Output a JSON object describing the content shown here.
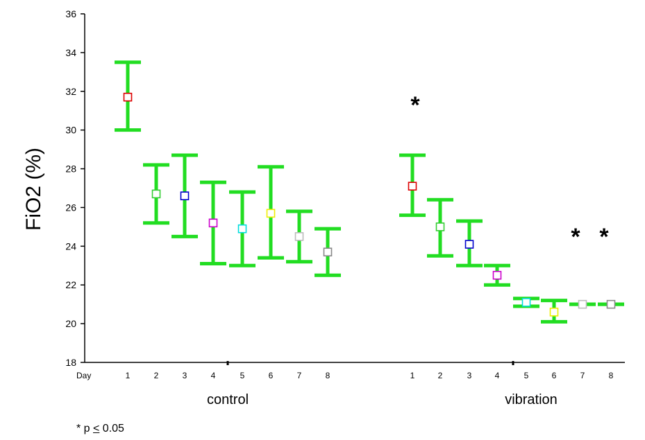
{
  "chart_data": {
    "type": "scatter",
    "ylabel": "FiO2 (%)",
    "xlabel": "",
    "ylim": [
      18,
      36
    ],
    "yticks": [
      18,
      20,
      22,
      24,
      26,
      28,
      30,
      32,
      34,
      36
    ],
    "day_axis_label": "Day",
    "grid": false,
    "legend": "none",
    "error_bar_color": "#22dd22",
    "day_colors": [
      "#dd0000",
      "#33cc33",
      "#0000cc",
      "#cc00cc",
      "#00dddd",
      "#eeee00",
      "#bbbbbb",
      "#888888"
    ],
    "groups": [
      {
        "name": "control",
        "days": [
          "1",
          "2",
          "3",
          "4",
          "5",
          "6",
          "7",
          "8"
        ],
        "mean": [
          31.7,
          26.7,
          26.6,
          25.2,
          24.9,
          25.7,
          24.5,
          23.7
        ],
        "lower": [
          30.0,
          25.2,
          24.5,
          23.1,
          23.0,
          23.4,
          23.2,
          22.5
        ],
        "upper": [
          33.5,
          28.2,
          28.7,
          27.3,
          26.8,
          28.1,
          25.8,
          24.9
        ],
        "significant": [
          false,
          false,
          false,
          false,
          false,
          false,
          false,
          false
        ]
      },
      {
        "name": "vibration",
        "days": [
          "1",
          "2",
          "3",
          "4",
          "5",
          "6",
          "7",
          "8"
        ],
        "mean": [
          27.1,
          25.0,
          24.1,
          22.5,
          21.1,
          20.6,
          21.0,
          21.0
        ],
        "lower": [
          25.6,
          23.5,
          23.0,
          22.0,
          20.9,
          20.1,
          21.0,
          21.0
        ],
        "upper": [
          28.7,
          26.4,
          25.3,
          23.0,
          21.3,
          21.2,
          21.0,
          21.0
        ],
        "significant": [
          true,
          false,
          false,
          false,
          false,
          false,
          true,
          true
        ]
      }
    ],
    "significance_marker": "*",
    "footnote": {
      "prefix": "* p ",
      "symbol": "<",
      "suffix": " 0.05"
    }
  }
}
